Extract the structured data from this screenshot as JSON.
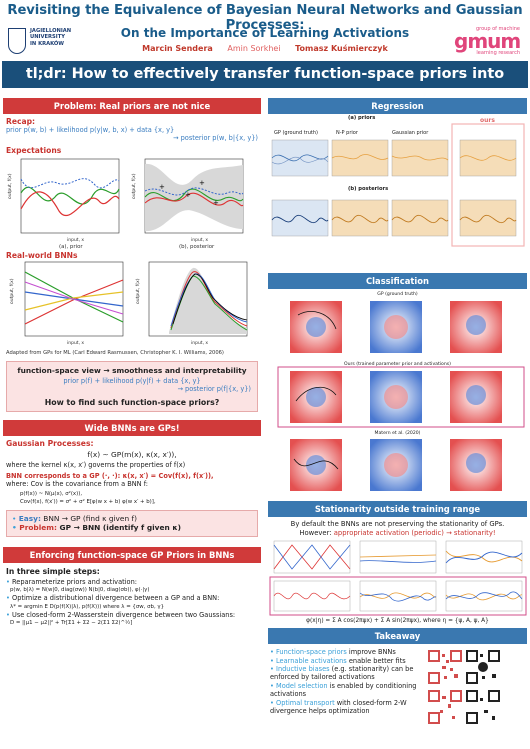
{
  "header": {
    "title": "Revisiting the Equivalence of Bayesian Neural Networks and Gaussian Processes:",
    "subtitle": "On the Importance of Learning Activations",
    "authors": [
      "Marcin Sendera",
      "Amin Sorkhei",
      "Tomasz Kuśmierczyk"
    ],
    "uj_logo_text": [
      "JAGIELLONIAN",
      "UNIVERSITY",
      "IN KRAKÓW"
    ],
    "gmum_top": "group of machine",
    "gmum_word": "gmum",
    "gmum_bottom": "learning research",
    "tldr": "tl;dr: How to effectively transfer function-space priors into BNNs?"
  },
  "left": {
    "sec1": {
      "heading": "Problem: Real priors are not nice",
      "recap_label": "Recap:",
      "recap_line1": "prior p(w, b) + likelihood p(y|w, b, x) + data {x, y}",
      "recap_line2": "→ posterior p(w, b|{x, y})",
      "expectations_label": "Expectations",
      "cap_a": "(a), prior",
      "cap_b": "(b), posterior",
      "real_label": "Real-world BNNs",
      "source": "Adapted from GPs for ML (Carl Edward Rasmussen, Christopher K. I. Williams, 2006)",
      "fsv_line": "function-space view → smoothness and interpretability",
      "fsv_prior": "prior p(f) + likelihood p(y|f) + data {x, y}",
      "fsv_post": "→ posterior p(f|{x, y})",
      "question": "How to find such function-space priors?"
    },
    "sec2": {
      "heading": "Wide BNNs are GPs!",
      "gp_label": "Gaussian Processes:",
      "gp_formula": "f(x) ∼ GP(m(x), κ(x, x′)),",
      "gp_where": "where the kernel κ(x, x′) governs the properties of f(x)",
      "bnn_label": "BNN corresponds to a GP (·, ·): κ(x, x′) = Cov(f(x), f(x′)),",
      "bnn_where": "where: Cov is the covariance from a BNN f:",
      "eq1": "p(f(x)) ~ N(μ(x), σ²(x)),",
      "eq2": "Cov(f(x), f(x′)) = σ² + σ² E[φ(w x + b) φ(w x′ + b)],",
      "easy_label": "Easy:",
      "easy_text": "BNN → GP (find κ given f)",
      "problem_label": "Problem:",
      "problem_text": "GP → BNN (identify f given κ)"
    },
    "sec3": {
      "heading": "Enforcing function-space GP Priors in BNNs",
      "three_steps": "In three simple steps:",
      "step1": "Reparameterize priors and activation:",
      "step1_eq": "p(w, b|λ) = N(w|0, diag(σw)) N(b|0, diag(σb)), φ(·|γ)",
      "step2": "Optimize a distributional divergence between a GP and a BNN:",
      "step2_eq": "λ* = argmin E D(p(f(X)|λ), p(f(X))) where λ = {σw, σb, γ}",
      "step3": "Use closed-form 2-Wasserstein divergence between two Gaussians:",
      "step3_eq": "D = ||μ1 − μ2||² + Tr[Σ1 + Σ2 − 2(Σ1 Σ2)^½]"
    }
  },
  "right": {
    "regression": {
      "heading": "Regression",
      "priors_label": "(a) priors",
      "posteriors_label": "(b) posteriors",
      "col_gp": "GP (ground truth)",
      "col_np": "N-P prior",
      "col_gauss": "Gaussian prior",
      "col_ours": "ours"
    },
    "classification": {
      "heading": "Classification",
      "gt_label": "GP (ground truth)",
      "ours_label": "Ours (trained parameter prior and activations)",
      "matern_label": "Matern et al. (2020)"
    },
    "stationarity": {
      "heading": "Stationarity outside training range",
      "line1": "By default the BNNs are not preserving the stationarity of GPs.",
      "line2_pre": "However:",
      "line2_red": "appropriate activation (periodic) → stationarity!",
      "formula": "φ(x|η) = Σ A cos(2πψx) + Σ A sin(2πψx), where η = {ψ, A, ψ, A}"
    },
    "takeaway": {
      "heading": "Takeaway",
      "items": [
        {
          "hl": "Function-space priors",
          "rest": " improve BNNs"
        },
        {
          "hl": "Learnable activations",
          "rest": " enable better fits"
        },
        {
          "hl": "Inductive biases",
          "rest": " (e.g. stationarity) can be enforced by tailored activations"
        },
        {
          "hl": "Model selection",
          "rest": " is enabled by conditioning activations"
        },
        {
          "hl": "Optimal transport",
          "rest": " with closed-form 2-W divergence helps optimization"
        }
      ]
    }
  }
}
